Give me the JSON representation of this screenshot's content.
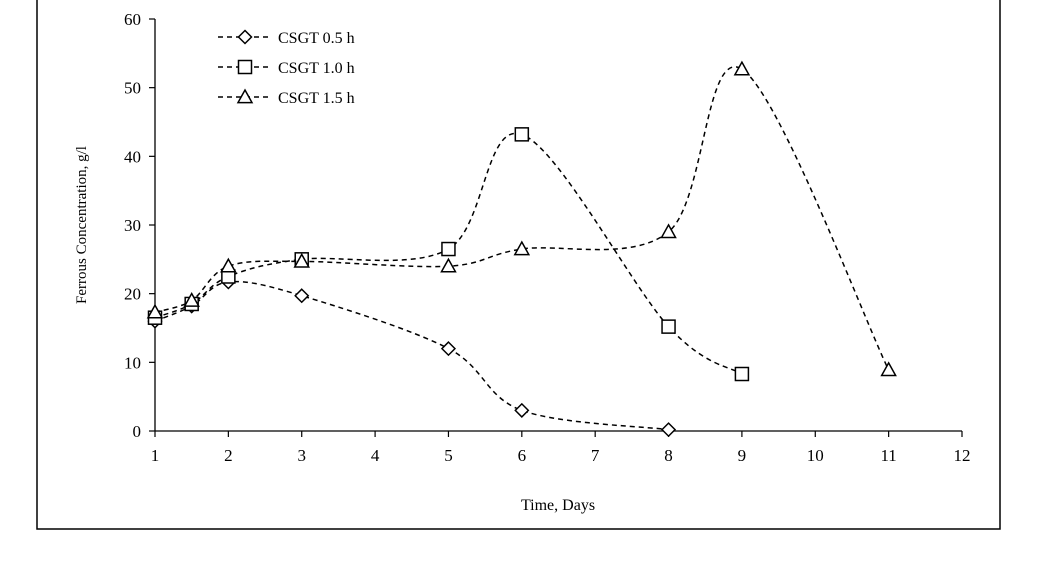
{
  "chart_data": {
    "type": "line",
    "title": "",
    "xlabel": "Time, Days",
    "ylabel": "Ferrous Concentration, g/l",
    "x_ticks": [
      "1",
      "2",
      "3",
      "4",
      "5",
      "6",
      "7",
      "8",
      "9",
      "10",
      "11",
      "12"
    ],
    "y_ticks": [
      "0",
      "10",
      "20",
      "30",
      "40",
      "50",
      "60"
    ],
    "xlim": [
      1,
      12
    ],
    "ylim": [
      0,
      60
    ],
    "grid": false,
    "legend_position": "top-left",
    "series": [
      {
        "name": "CSGT 0.5 h",
        "marker": "diamond",
        "line_style": "dashed",
        "x": [
          1,
          1.5,
          2,
          3,
          5,
          6,
          8
        ],
        "y": [
          16,
          18.2,
          21.7,
          19.7,
          12,
          3,
          0.2
        ]
      },
      {
        "name": "CSGT 1.0 h",
        "marker": "square",
        "line_style": "dashed",
        "x": [
          1,
          1.5,
          2,
          3,
          5,
          6,
          8,
          9
        ],
        "y": [
          16.5,
          18.5,
          22.5,
          25,
          26.5,
          43.2,
          15.2,
          8.3
        ]
      },
      {
        "name": "CSGT 1.5 h",
        "marker": "triangle",
        "line_style": "dashed",
        "x": [
          1,
          1.5,
          2,
          3,
          5,
          6,
          8,
          9,
          11
        ],
        "y": [
          17.3,
          19,
          24,
          24.7,
          24,
          26.5,
          29,
          52.7,
          8.9
        ]
      }
    ]
  }
}
